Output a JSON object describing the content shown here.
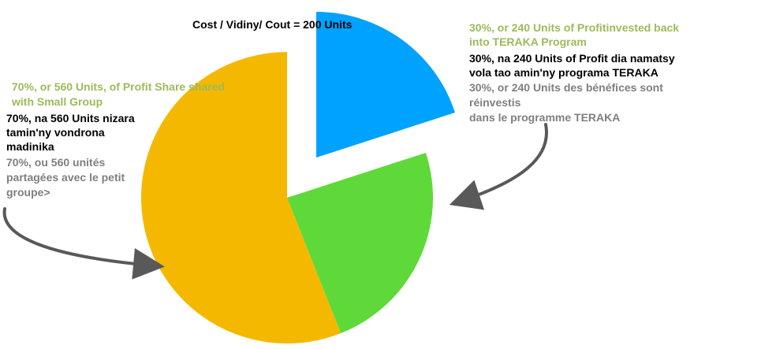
{
  "colors": {
    "cost": "#00A2FF",
    "profit_reinvested": "#5FD93A",
    "profit_share": "#F5B800",
    "label_english": "#9BBB59",
    "label_malagasy": "#000000",
    "label_french": "#7F7F7F",
    "arrow": "#595959"
  },
  "chart_data": {
    "type": "pie",
    "title": "Cost / Vidiny/ Cout = 200 Units",
    "slices": [
      {
        "key": "cost",
        "value": 200,
        "exploded": true
      },
      {
        "key": "profit_reinvested",
        "value": 240
      },
      {
        "key": "profit_share",
        "value": 560
      }
    ],
    "annotations": {
      "reinvest": {
        "english": [
          "30%, or 240 Units of Profitinvested back",
          "into TERAKA Program"
        ],
        "malagasy": [
          "30%, na 240 Units of Profit dia namatsy",
          "vola tao amin'ny programa TERAKA"
        ],
        "french": [
          "30%, or 240 Units des bénéfices sont",
          "réinvestis",
          "dans le programme TERAKA"
        ]
      },
      "share": {
        "english": [
          "70%, or 560 Units, of Profit Share shared",
          "with Small Group"
        ],
        "malagasy": [
          "70%, na 560 Units nizara",
          "tamin'ny vondrona",
          "madinika"
        ],
        "french": [
          "70%, ou 560 unités",
          "partagées avec le petit",
          "groupe>"
        ]
      }
    }
  }
}
